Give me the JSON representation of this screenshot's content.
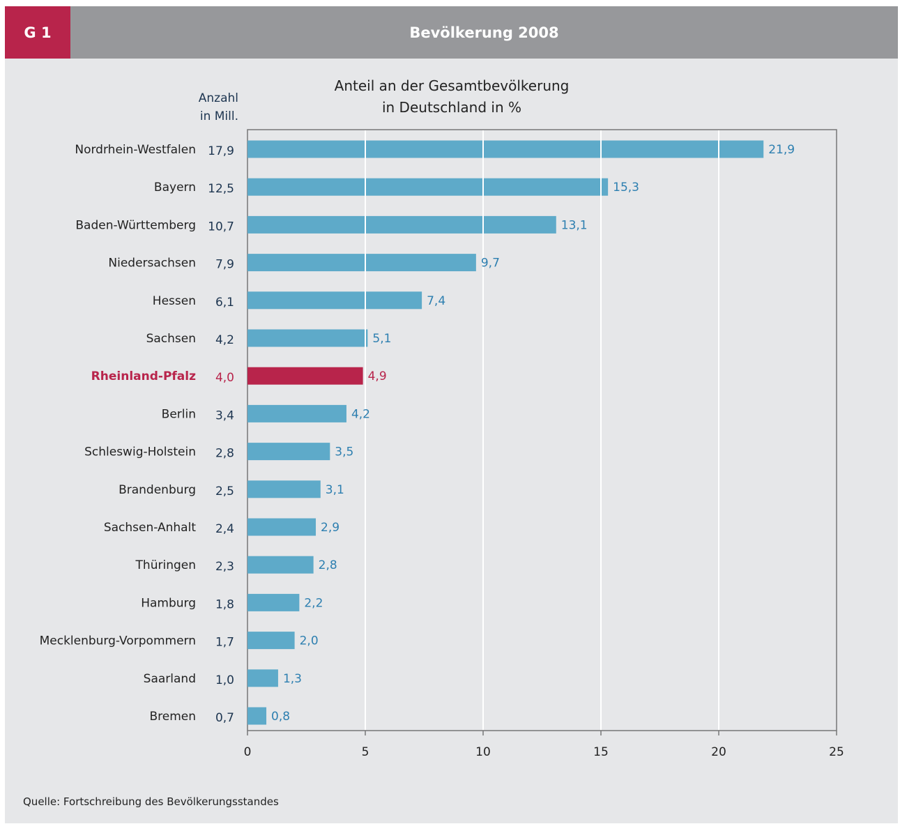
{
  "header": {
    "figure_id": "G 1",
    "title": "Bevölkerung 2008"
  },
  "source": "Quelle: Fortschreibung des Bevölkerungsstandes",
  "chart_data": {
    "type": "bar",
    "orientation": "horizontal",
    "title": "Anteil an der Gesamtbevölkerung in Deutschland in %",
    "title_lines": [
      "Anteil an der Gesamtbevölkerung",
      "in Deutschland in %"
    ],
    "count_header": [
      "Anzahl",
      "in Mill."
    ],
    "categories": [
      "Nordrhein-Westfalen",
      "Bayern",
      "Baden-Württemberg",
      "Niedersachsen",
      "Hessen",
      "Sachsen",
      "Rheinland-Pfalz",
      "Berlin",
      "Schleswig-Holstein",
      "Brandenburg",
      "Sachsen-Anhalt",
      "Thüringen",
      "Hamburg",
      "Mecklenburg-Vorpommern",
      "Saarland",
      "Bremen"
    ],
    "values": [
      21.9,
      15.3,
      13.1,
      9.7,
      7.4,
      5.1,
      4.9,
      4.2,
      3.5,
      3.1,
      2.9,
      2.8,
      2.2,
      2.0,
      1.3,
      0.8
    ],
    "value_labels": [
      "21,9",
      "15,3",
      "13,1",
      "9,7",
      "7,4",
      "5,1",
      "4,9",
      "4,2",
      "3,5",
      "3,1",
      "2,9",
      "2,8",
      "2,2",
      "2,0",
      "1,3",
      "0,8"
    ],
    "counts": [
      "17,9",
      "12,5",
      "10,7",
      "7,9",
      "6,1",
      "4,2",
      "4,0",
      "3,4",
      "2,8",
      "2,5",
      "2,4",
      "2,3",
      "1,8",
      "1,7",
      "1,0",
      "0,7"
    ],
    "highlight": "Rheinland-Pfalz",
    "xlim": [
      0,
      25
    ],
    "xticks": [
      0,
      5,
      10,
      15,
      20,
      25
    ],
    "xtick_labels": [
      "0",
      "5",
      "10",
      "15",
      "20",
      "25"
    ],
    "grid": true,
    "colors": {
      "bar": "#5eaac9",
      "highlight": "#b8244b",
      "grid": "#ffffff",
      "axis": "#777777"
    }
  }
}
